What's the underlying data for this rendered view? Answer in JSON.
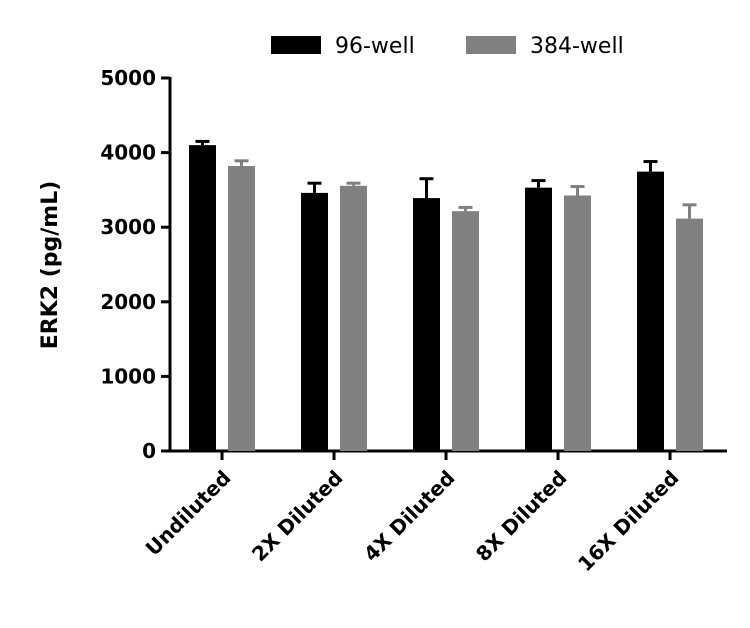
{
  "chart_data": {
    "type": "bar",
    "title": "",
    "xlabel": "",
    "ylabel": "ERK2 (pg/mL)",
    "ylim": [
      0,
      5000
    ],
    "yticks": [
      0,
      1000,
      2000,
      3000,
      4000,
      5000
    ],
    "grid": false,
    "legend_position": "top",
    "categories": [
      "Undiluted",
      "2X Diluted",
      "4X Diluted",
      "8X Diluted",
      "16X Diluted"
    ],
    "series": [
      {
        "name": "96-well",
        "color": "#000000",
        "values": [
          4100,
          3460,
          3390,
          3530,
          3745
        ],
        "error_upper": [
          4150,
          3590,
          3650,
          3625,
          3880
        ]
      },
      {
        "name": "384-well",
        "color": "#808080",
        "values": [
          3820,
          3555,
          3215,
          3425,
          3115
        ],
        "error_upper": [
          3890,
          3590,
          3265,
          3545,
          3300
        ]
      }
    ]
  }
}
